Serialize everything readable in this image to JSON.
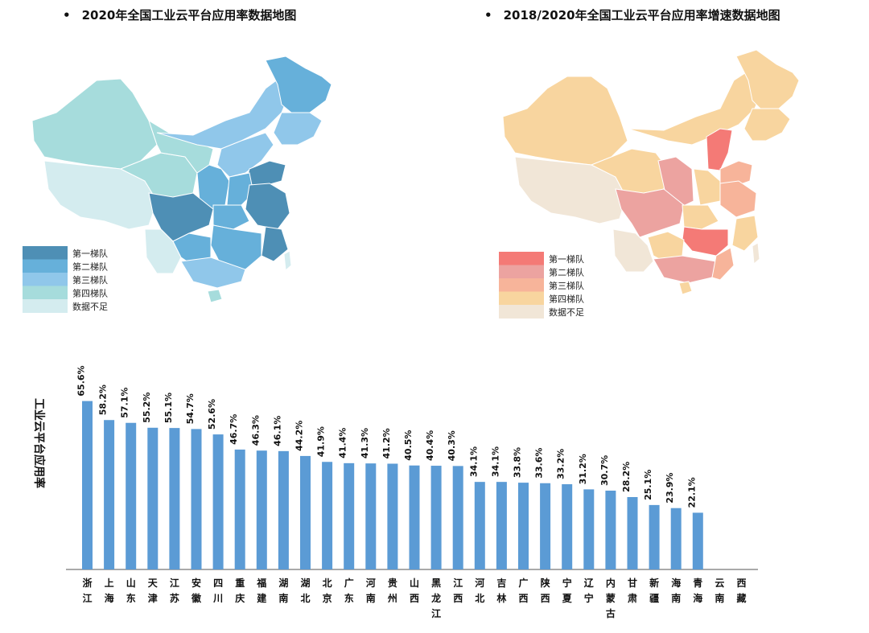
{
  "maps": {
    "left": {
      "title": "2020年全国工业云平台应用率数据地图",
      "legend": [
        {
          "label": "第一梯队",
          "color": "#4e8fb5"
        },
        {
          "label": "第二梯队",
          "color": "#66b0da"
        },
        {
          "label": "第三梯队",
          "color": "#90c7ea"
        },
        {
          "label": "第四梯队",
          "color": "#a6dcdc"
        },
        {
          "label": "数据不足",
          "color": "#d4ecef"
        }
      ]
    },
    "right": {
      "title": "2018/2020年全国工业云平台应用率增速数据地图",
      "legend": [
        {
          "label": "第一梯队",
          "color": "#f47a76"
        },
        {
          "label": "第二梯队",
          "color": "#eca3a0"
        },
        {
          "label": "第三梯队",
          "color": "#f7b49a"
        },
        {
          "label": "第四梯队",
          "color": "#f8d59f"
        },
        {
          "label": "数据不足",
          "color": "#f1e6d7"
        }
      ]
    }
  },
  "chart_data": {
    "type": "bar",
    "ylabel": "工业云平台应用率",
    "bar_color": "#5b9bd5",
    "ylim": [
      0,
      70
    ],
    "categories": [
      "浙江",
      "上海",
      "山东",
      "天津",
      "江苏",
      "安徽",
      "四川",
      "重庆",
      "福建",
      "湖南",
      "湖北",
      "北京",
      "广东",
      "河南",
      "贵州",
      "山西",
      "黑龙江",
      "江西",
      "河北",
      "吉林",
      "广西",
      "陕西",
      "宁夏",
      "辽宁",
      "内蒙古",
      "甘肃",
      "新疆",
      "海南",
      "青海",
      "云南",
      "西藏"
    ],
    "values": [
      65.6,
      58.2,
      57.1,
      55.2,
      55.1,
      54.7,
      52.6,
      46.7,
      46.3,
      46.1,
      44.2,
      41.9,
      41.4,
      41.3,
      41.2,
      40.5,
      40.4,
      40.3,
      34.1,
      34.1,
      33.8,
      33.6,
      33.2,
      31.2,
      30.7,
      28.2,
      25.1,
      23.9,
      22.1,
      null,
      null
    ],
    "labels": [
      "65.6%",
      "58.2%",
      "57.1%",
      "55.2%",
      "55.1%",
      "54.7%",
      "52.6%",
      "46.7%",
      "46.3%",
      "46.1%",
      "44.2%",
      "41.9%",
      "41.4%",
      "41.3%",
      "41.2%",
      "40.5%",
      "40.4%",
      "40.3%",
      "34.1%",
      "34.1%",
      "33.8%",
      "33.6%",
      "33.2%",
      "31.2%",
      "30.7%",
      "28.2%",
      "25.1%",
      "23.9%",
      "22.1%",
      "",
      ""
    ]
  }
}
